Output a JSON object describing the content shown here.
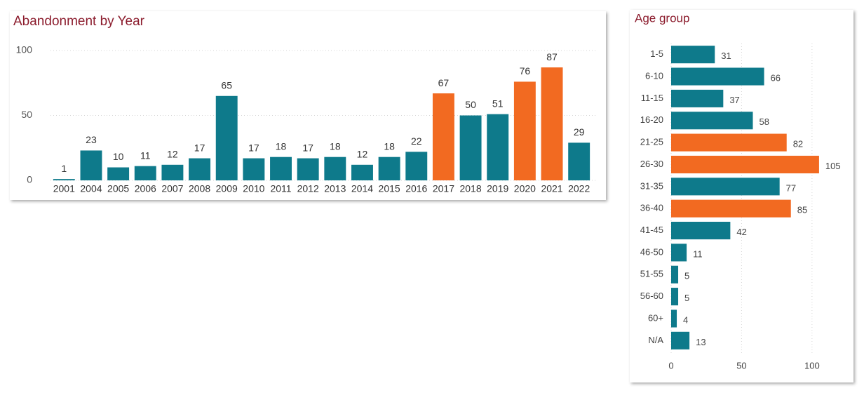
{
  "chart_data": [
    {
      "type": "bar",
      "title": "Abandonment by Year",
      "categories": [
        "2001",
        "2004",
        "2005",
        "2006",
        "2007",
        "2008",
        "2009",
        "2010",
        "2011",
        "2012",
        "2013",
        "2014",
        "2015",
        "2016",
        "2017",
        "2018",
        "2019",
        "2020",
        "2021",
        "2022"
      ],
      "values": [
        1,
        23,
        10,
        11,
        12,
        17,
        65,
        17,
        18,
        17,
        18,
        12,
        18,
        22,
        67,
        50,
        51,
        76,
        87,
        29
      ],
      "colors": [
        "#0e7a8b",
        "#0e7a8b",
        "#0e7a8b",
        "#0e7a8b",
        "#0e7a8b",
        "#0e7a8b",
        "#0e7a8b",
        "#0e7a8b",
        "#0e7a8b",
        "#0e7a8b",
        "#0e7a8b",
        "#0e7a8b",
        "#0e7a8b",
        "#0e7a8b",
        "#f26a21",
        "#0e7a8b",
        "#0e7a8b",
        "#f26a21",
        "#f26a21",
        "#0e7a8b"
      ],
      "ylim": [
        0,
        100
      ],
      "yticks": [
        0,
        50,
        100
      ],
      "grid": true
    },
    {
      "type": "hbar",
      "title": "Age group",
      "categories": [
        "1-5",
        "6-10",
        "11-15",
        "16-20",
        "21-25",
        "26-30",
        "31-35",
        "36-40",
        "41-45",
        "46-50",
        "51-55",
        "56-60",
        "60+",
        "N/A"
      ],
      "values": [
        31,
        66,
        37,
        58,
        82,
        105,
        77,
        85,
        42,
        11,
        5,
        5,
        4,
        13
      ],
      "colors": [
        "#0e7a8b",
        "#0e7a8b",
        "#0e7a8b",
        "#0e7a8b",
        "#f26a21",
        "#f26a21",
        "#0e7a8b",
        "#f26a21",
        "#0e7a8b",
        "#0e7a8b",
        "#0e7a8b",
        "#0e7a8b",
        "#0e7a8b",
        "#0e7a8b"
      ],
      "xlim": [
        0,
        115
      ],
      "xticks": [
        0,
        50,
        100
      ],
      "grid": true
    }
  ]
}
